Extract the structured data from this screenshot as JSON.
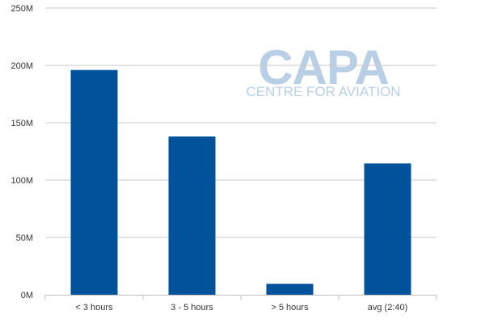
{
  "watermark": {
    "brand": "CAPA",
    "tagline": "CENTRE FOR AVIATION",
    "color": "#b8cfe6"
  },
  "colors": {
    "bar": "#00529b",
    "grid": "#c8c8c8",
    "baseline": "#c0c0c0"
  },
  "chart_data": {
    "type": "bar",
    "title": "",
    "xlabel": "",
    "ylabel": "",
    "categories": [
      "< 3 hours",
      "3 - 5 hours",
      "> 5 hours",
      "avg (2:40)"
    ],
    "values": [
      196000000,
      138000000,
      9500000,
      114500000
    ],
    "ylim": [
      0,
      250000000
    ],
    "yticks": [
      0,
      50000000,
      100000000,
      150000000,
      200000000,
      250000000
    ],
    "ytick_labels": [
      "0M",
      "50M",
      "100M",
      "150M",
      "200M",
      "250M"
    ],
    "grid": true,
    "legend": "none"
  }
}
